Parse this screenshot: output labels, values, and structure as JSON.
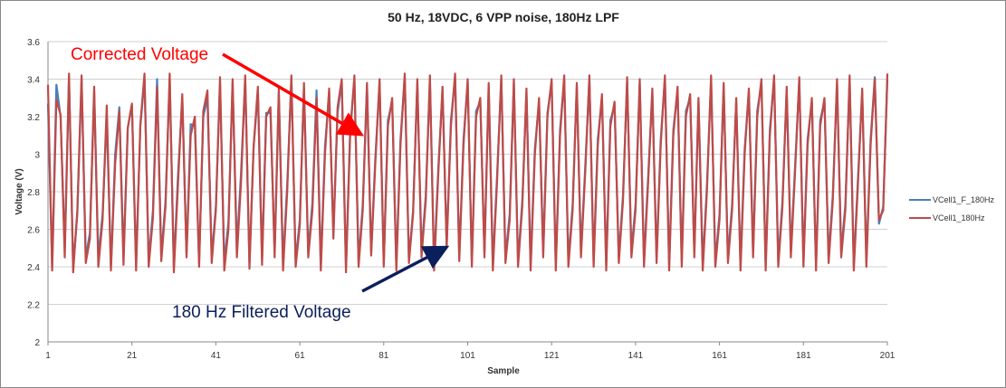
{
  "chart_data": {
    "type": "line",
    "title": "50 Hz, 18VDC, 6 VPP noise, 180Hz LPF",
    "xlabel": "Sample",
    "ylabel": "Voltage (V)",
    "xlim": [
      1,
      201
    ],
    "ylim": [
      2,
      3.6
    ],
    "yticks": [
      "2",
      "2.2",
      "2.4",
      "2.6",
      "2.8",
      "3",
      "3.2",
      "3.4",
      "3.6"
    ],
    "xticks": [
      "1",
      "21",
      "41",
      "61",
      "81",
      "101",
      "121",
      "141",
      "161",
      "181",
      "201"
    ],
    "grid": "horizontal",
    "legend": "right",
    "annotations": [
      {
        "text": "Corrected Voltage",
        "color": "#ff0000"
      },
      {
        "text": "180 Hz Filtered Voltage",
        "color": "#0b1f5c"
      }
    ],
    "series": [
      {
        "name": "VCell1_F_180Hz",
        "color": "#4a7ebb",
        "values": [
          3.27,
          2.4,
          3.37,
          3.2,
          2.5,
          3.41,
          2.4,
          2.68,
          3.4,
          2.45,
          2.58,
          3.33,
          2.45,
          2.68,
          3.2,
          2.4,
          3.0,
          3.25,
          2.45,
          3.14,
          3.26,
          2.42,
          3.15,
          3.4,
          2.43,
          2.7,
          3.4,
          2.46,
          2.75,
          3.4,
          2.4,
          2.9,
          3.3,
          2.47,
          3.16,
          3.15,
          2.42,
          3.2,
          3.3,
          2.45,
          2.72,
          3.38,
          2.42,
          2.64,
          3.38,
          2.5,
          2.9,
          3.4,
          2.42,
          3.04,
          3.33,
          2.44,
          3.22,
          3.22,
          2.48,
          3.32,
          2.42,
          2.84,
          3.4,
          2.43,
          2.65,
          3.35,
          2.48,
          2.74,
          3.34,
          2.4,
          3.04,
          3.33,
          2.58,
          3.22,
          3.39,
          2.4,
          3.13,
          3.4,
          2.43,
          2.73,
          3.36,
          2.48,
          2.98,
          3.38,
          2.42,
          3.18,
          3.28,
          2.41,
          3.08,
          3.41,
          2.44,
          2.7,
          3.38,
          2.48,
          2.78,
          3.4,
          2.41,
          2.93,
          3.34,
          2.52,
          3.18,
          3.41,
          2.45,
          3.08,
          3.38,
          2.43,
          3.23,
          3.28,
          2.48,
          3.36,
          2.41,
          2.88,
          3.4,
          2.45,
          2.68,
          3.38,
          2.43,
          2.75,
          3.33,
          2.41,
          3.03,
          3.28,
          2.48,
          3.22,
          3.38,
          2.41,
          3.13,
          3.4,
          2.43,
          2.73,
          3.36,
          2.48,
          2.93,
          3.4,
          2.43,
          3.08,
          3.3,
          2.41,
          3.18,
          3.26,
          2.45,
          2.78,
          3.39,
          2.48,
          2.73,
          3.38,
          2.43,
          2.88,
          3.33,
          2.45,
          3.08,
          3.4,
          2.41,
          3.13,
          3.34,
          2.43,
          3.23,
          3.3,
          2.48,
          3.28,
          2.41,
          2.83,
          3.4,
          2.43,
          2.68,
          3.36,
          2.45,
          2.73,
          3.28,
          2.41,
          3.03,
          3.33,
          2.48,
          3.23,
          3.38,
          2.41,
          3.13,
          3.4,
          2.43,
          2.75,
          3.34,
          2.48,
          2.93,
          3.39,
          2.43,
          3.08,
          3.28,
          2.41,
          3.18,
          3.28,
          2.45,
          2.78,
          3.38,
          2.48,
          2.73,
          3.4,
          2.41,
          2.88,
          3.33,
          2.43,
          3.08,
          3.41,
          2.63,
          2.72,
          3.4
        ]
      },
      {
        "name": "VCell1_180Hz",
        "color": "#be4b48",
        "values": [
          3.37,
          2.38,
          3.29,
          3.21,
          2.45,
          3.43,
          2.37,
          2.7,
          3.42,
          2.42,
          2.55,
          3.36,
          2.4,
          2.65,
          3.26,
          2.38,
          2.95,
          3.23,
          2.41,
          3.14,
          3.27,
          2.38,
          3.16,
          3.43,
          2.4,
          2.66,
          3.36,
          2.43,
          2.72,
          3.43,
          2.37,
          2.85,
          3.32,
          2.45,
          3.1,
          3.2,
          2.4,
          3.23,
          3.34,
          2.42,
          2.7,
          3.41,
          2.38,
          2.6,
          3.4,
          2.45,
          2.85,
          3.42,
          2.39,
          3.04,
          3.36,
          2.41,
          3.2,
          3.25,
          2.45,
          3.35,
          2.38,
          2.8,
          3.42,
          2.4,
          2.62,
          3.38,
          2.45,
          2.7,
          3.3,
          2.38,
          3.0,
          3.35,
          2.55,
          3.25,
          3.4,
          2.37,
          3.1,
          3.42,
          2.4,
          2.7,
          3.38,
          2.46,
          2.95,
          3.4,
          2.4,
          3.15,
          3.3,
          2.38,
          3.05,
          3.43,
          2.42,
          2.68,
          3.4,
          2.45,
          2.75,
          3.42,
          2.38,
          2.9,
          3.36,
          2.5,
          3.15,
          3.43,
          2.43,
          3.05,
          3.4,
          2.4,
          3.2,
          3.3,
          2.45,
          3.38,
          2.38,
          2.85,
          3.42,
          2.42,
          2.65,
          3.4,
          2.4,
          2.72,
          3.35,
          2.38,
          3.0,
          3.3,
          2.45,
          3.2,
          3.4,
          2.38,
          3.1,
          3.42,
          2.4,
          2.7,
          3.38,
          2.45,
          2.9,
          3.42,
          2.4,
          3.05,
          3.32,
          2.38,
          3.15,
          3.28,
          2.42,
          2.75,
          3.41,
          2.45,
          2.7,
          3.4,
          2.4,
          2.85,
          3.35,
          2.42,
          3.05,
          3.42,
          2.38,
          3.1,
          3.36,
          2.4,
          3.2,
          3.32,
          2.45,
          3.3,
          2.38,
          2.8,
          3.42,
          2.4,
          2.65,
          3.38,
          2.42,
          2.7,
          3.3,
          2.38,
          3.0,
          3.35,
          2.45,
          3.2,
          3.4,
          2.38,
          3.1,
          3.42,
          2.4,
          2.72,
          3.36,
          2.45,
          2.9,
          3.41,
          2.4,
          3.05,
          3.3,
          2.38,
          3.15,
          3.3,
          2.42,
          2.75,
          3.4,
          2.45,
          2.7,
          3.42,
          2.38,
          2.85,
          3.35,
          2.4,
          3.05,
          3.4,
          2.65,
          2.7,
          3.43
        ]
      }
    ]
  }
}
